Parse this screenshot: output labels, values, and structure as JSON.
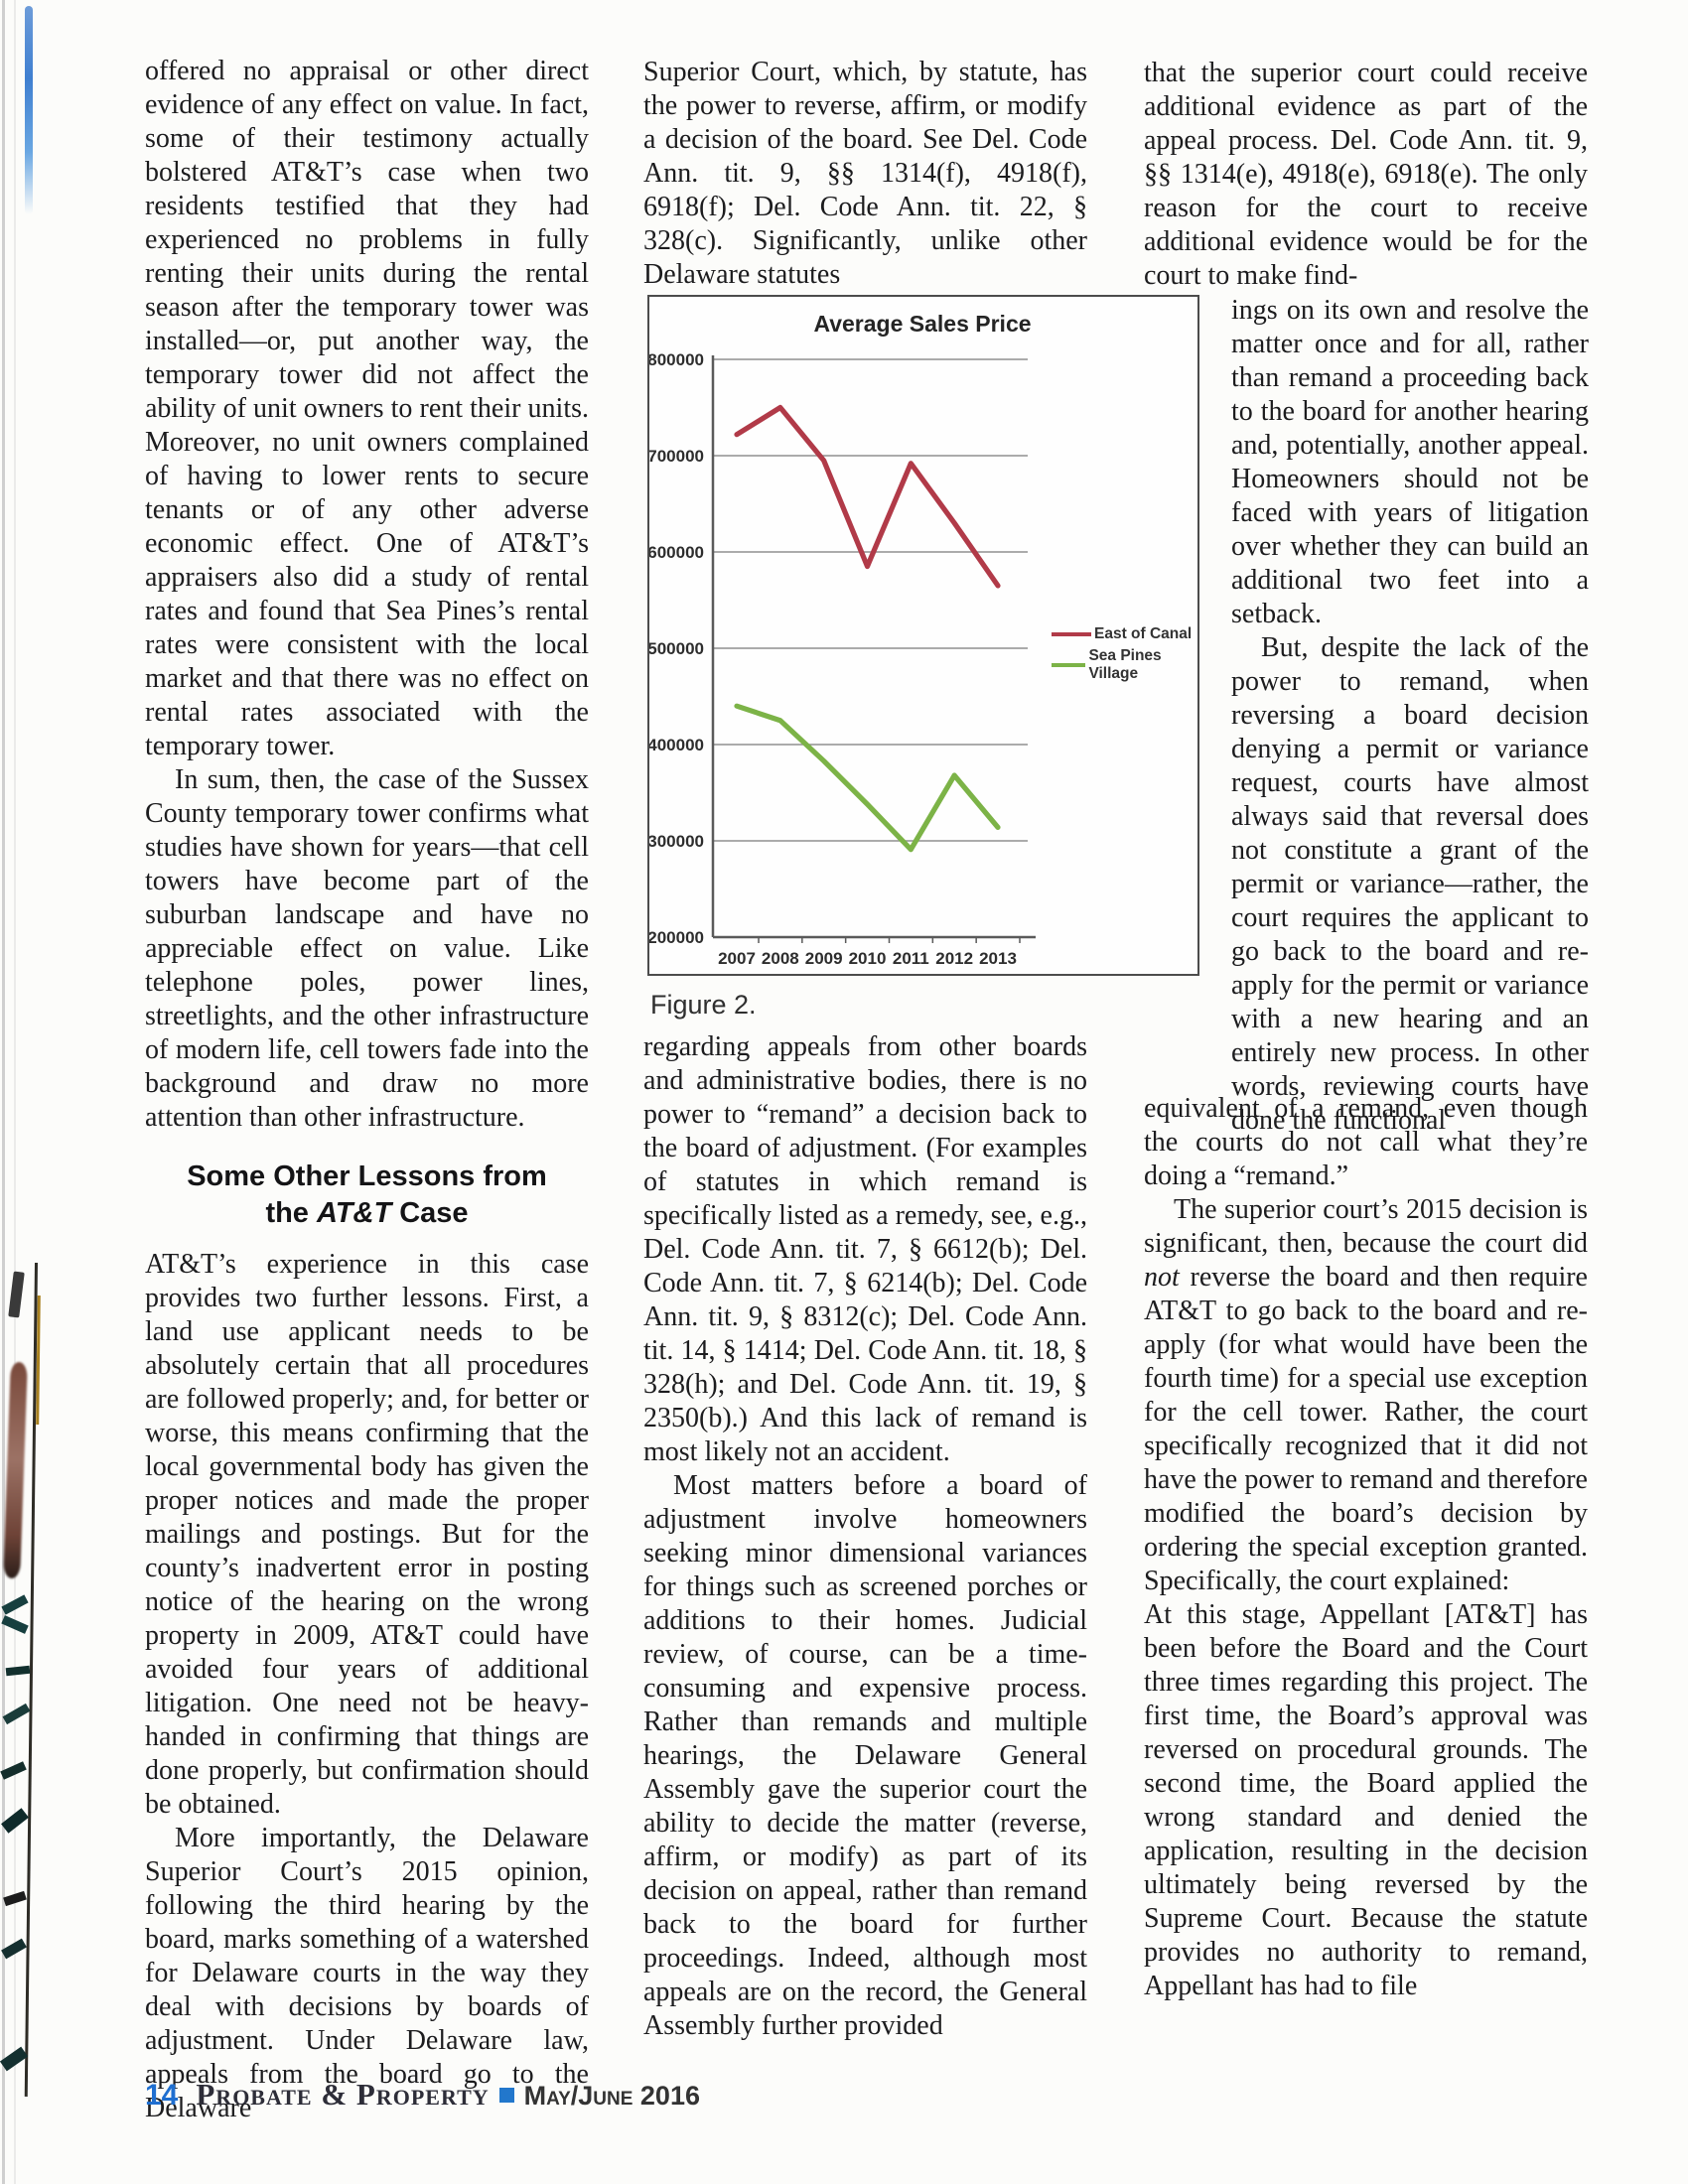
{
  "article": {
    "col1": {
      "p1": "offered no appraisal or other direct evidence of any effect on value. In fact, some of their testimony actually bolstered AT&T’s case when two residents testified that they had experienced no problems in fully renting their units during the rental season after the temporary tower was installed—or, put another way, the temporary tower did not affect the ability of unit owners to rent their units. Moreover, no unit owners complained of having to lower rents to secure tenants or of any other adverse economic effect. One of AT&T’s appraisers also did a study of rental rates and found that Sea Pines’s rental rates were consistent with the local market and that there was no effect on rental rates associated with the temporary tower.",
      "p2": "In sum, then, the case of the Sussex County temporary tower confirms what studies have shown for years—that cell towers have become part of the suburban landscape and have no appreciable effect on value. Like telephone poles, power lines, streetlights, and the other infrastructure of modern life, cell towers fade into the background and draw no more attention than other infrastructure.",
      "heading": {
        "line1": "Some Other Lessons from",
        "line2_pre": "the ",
        "line2_em": "AT&T",
        "line2_post": " Case"
      },
      "p3": "AT&T’s experience in this case provides two further lessons. First, a land use applicant needs to be absolutely certain that all procedures are followed properly; and, for better or worse, this means confirming that the local governmental body has given the proper notices and made the proper mailings and postings. But for the county’s inadvertent error in posting notice of the hearing on the wrong property in 2009, AT&T could have avoided four years of additional litigation. One need not be heavy-handed in confirming that things are done properly, but confirmation should be obtained.",
      "p4": "More importantly, the Delaware Superior Court’s 2015 opinion, following the third hearing by the board, marks something of a watershed for Delaware courts in the way they deal with decisions by boards of adjustment. Under Delaware law, appeals from the board go to the Delaware"
    },
    "col2": {
      "p1": "Superior Court, which, by statute, has the power to reverse, affirm, or modify a decision of the board. See Del. Code Ann. tit. 9, §§ 1314(f), 4918(f), 6918(f); Del. Code Ann. tit. 22, § 328(c). Significantly, unlike other Delaware statutes",
      "p2": "regarding appeals from other boards and administrative bodies, there is no power to “remand” a decision back to the board of adjustment. (For examples of statutes in which remand is specifically listed as a remedy, see, e.g., Del. Code Ann. tit. 7, § 6612(b); Del. Code Ann. tit. 7, § 6214(b); Del. Code Ann. tit. 9, § 8312(c); Del. Code Ann. tit. 14, § 1414; Del. Code Ann. tit. 18, § 328(h); and Del. Code Ann. tit. 19, § 2350(b).) And this lack of remand is most likely not an accident.",
      "p3": "Most matters before a board of adjustment involve homeowners seeking minor dimensional variances for things such as screened porches or additions to their homes. Judicial review, of course, can be a time-consuming and expensive process. Rather than remands and multiple hearings, the Delaware General Assembly gave the superior court the ability to decide the matter (reverse, affirm, or modify) as part of its decision on appeal, rather than remand back to the board for further proceedings. Indeed, although most appeals are on the record, the General Assembly further provided"
    },
    "col3": {
      "pA": "that the superior court could receive additional evidence as part of the appeal process. Del. Code Ann. tit. 9, §§ 1314(e), 4918(e), 6918(e). The only reason for the court to receive additional evidence would be for the court to make find-",
      "pB1": "ings on its own and resolve the matter once and for all, rather than remand a proceeding back to the board for another hearing and, potentially, another appeal. Homeowners should not be faced with years of litigation over whether they can build an additional two feet into a setback.",
      "pB2": "But, despite the lack of the power to remand, when reversing a board decision denying a permit or variance request, courts have almost always said that reversal does not constitute a grant of the permit or variance—rather, the court requires the applicant to go back to the board and re-apply for the permit or variance with a new hearing and an entirely new process. In other words, reviewing courts have done the functional",
      "pC1": "equivalent of a remand, even though the courts do not call what they’re doing a “remand.”",
      "pC2_pre": "The superior court’s 2015 decision is significant, then, because the court did ",
      "pC2_em": "not",
      "pC2_post": " reverse the board and then require AT&T to go back to the board and re-apply (for what would have been the fourth time) for a special use exception for the cell tower. Rather, the court specifically recognized that it did not have the power to remand and therefore modified the board’s decision by ordering the special exception granted. Specifically, the court explained:",
      "quote": "At this stage, Appellant [AT&T] has been before the Board and the Court three times regarding this project. The first time, the Board’s approval was reversed on procedural grounds. The second time, the Board applied the wrong standard and denied the application, resulting in the decision ultimately being reversed by the Supreme Court. Because the statute provides no authority to remand, Appellant has had to file"
    }
  },
  "figure": {
    "caption": "Figure 2."
  },
  "chart_data": {
    "type": "line",
    "title": "Average Sales Price",
    "x": [
      2007,
      2008,
      2009,
      2010,
      2011,
      2012,
      2013
    ],
    "series": [
      {
        "name": "East of Canal",
        "color": "#b13a48",
        "values": [
          722000,
          750000,
          695000,
          585000,
          692000,
          630000,
          565000
        ]
      },
      {
        "name": "Sea Pines Village",
        "color": "#7cb347",
        "values": [
          440000,
          425000,
          383000,
          338000,
          291000,
          368000,
          314000
        ]
      }
    ],
    "ylim": [
      200000,
      800000
    ],
    "ytick_step": 100000,
    "grid": true,
    "legend_position": "right",
    "xlabel": "",
    "ylabel": ""
  },
  "footer": {
    "page_number": "14",
    "magazine": "Probate & Property",
    "bullet_icon": "square",
    "issue": "May/June 2016"
  }
}
